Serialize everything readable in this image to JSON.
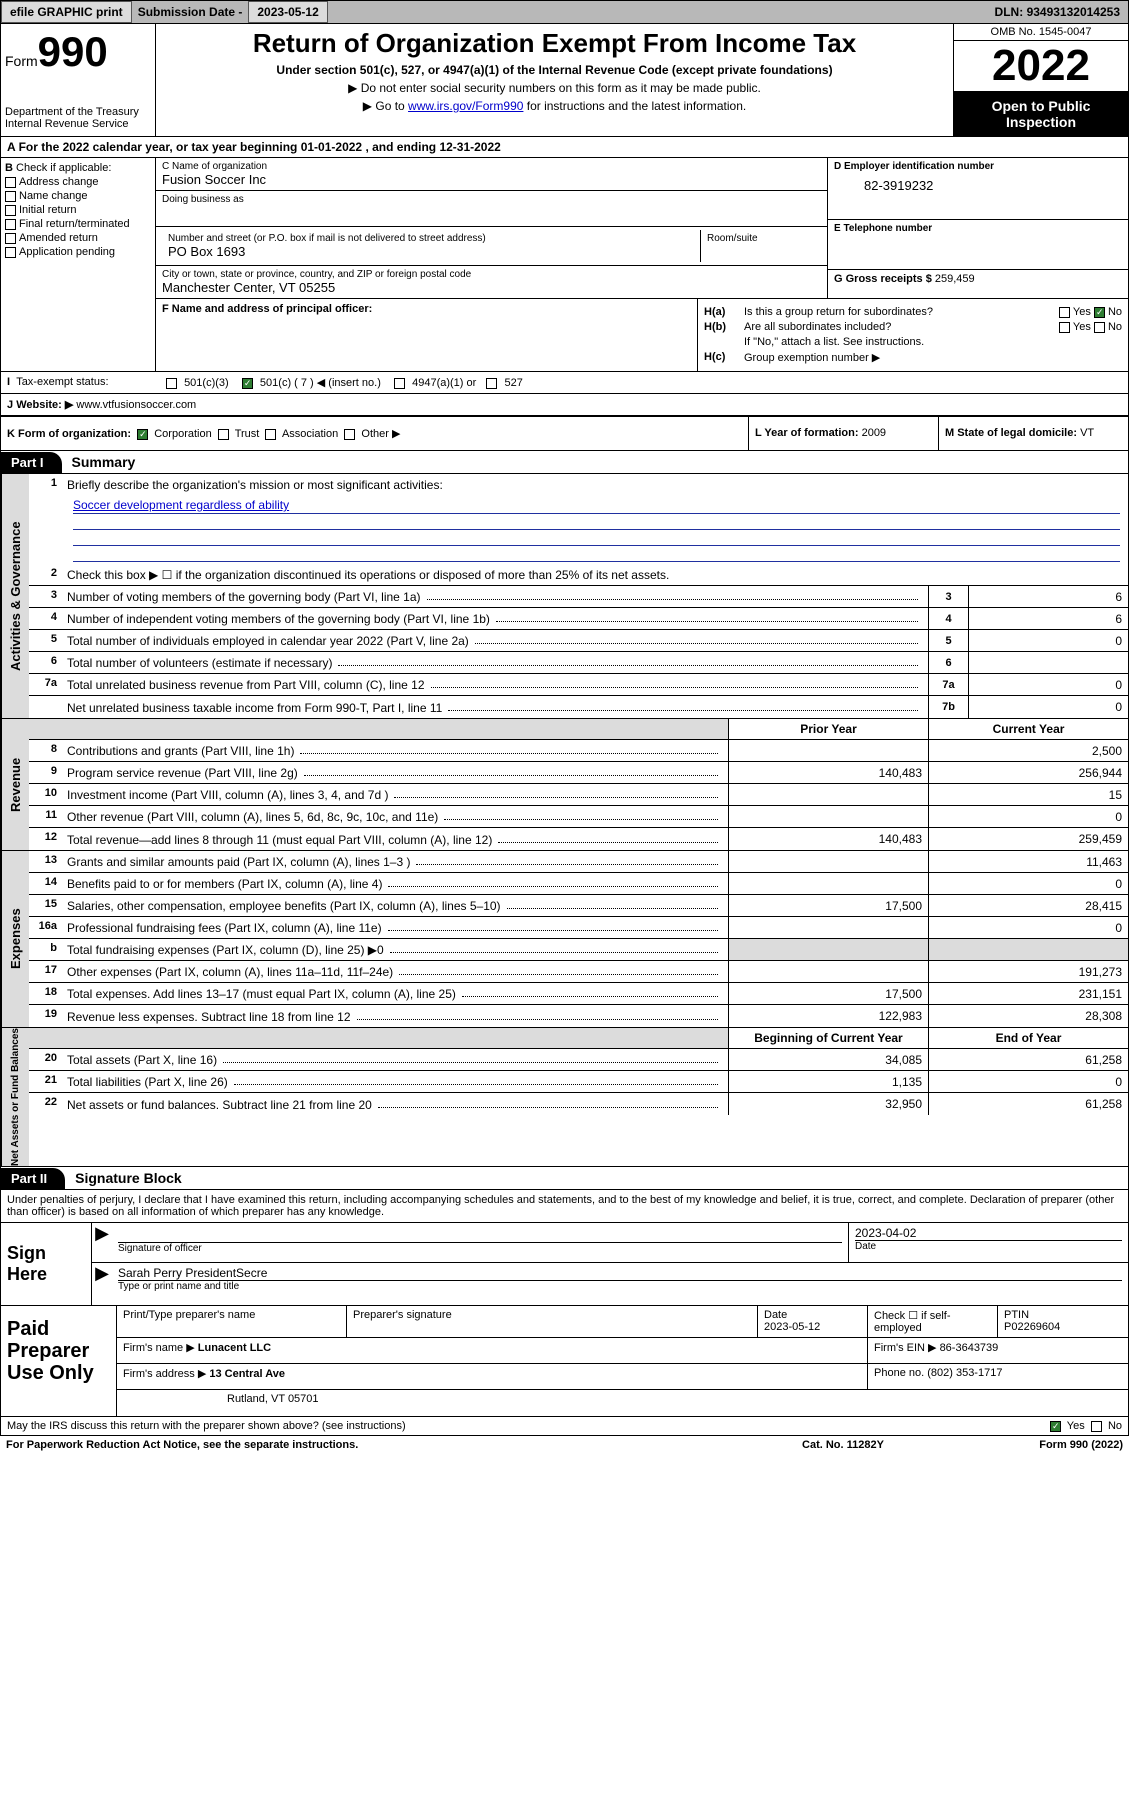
{
  "top": {
    "efile": "efile GRAPHIC print",
    "subdate_label": "Submission Date -",
    "subdate": "2023-05-12",
    "dln_label": "DLN:",
    "dln": "93493132014253"
  },
  "header": {
    "form_word": "Form",
    "form_num": "990",
    "dept": "Department of the Treasury",
    "irs": "Internal Revenue Service",
    "title": "Return of Organization Exempt From Income Tax",
    "subtitle": "Under section 501(c), 527, or 4947(a)(1) of the Internal Revenue Code (except private foundations)",
    "note1": "▶ Do not enter social security numbers on this form as it may be made public.",
    "note2_pre": "▶ Go to ",
    "note2_link": "www.irs.gov/Form990",
    "note2_post": " for instructions and the latest information.",
    "omb": "OMB No. 1545-0047",
    "year": "2022",
    "open": "Open to Public Inspection"
  },
  "period": {
    "text_a": "For the 2022 calendar year, or tax year beginning ",
    "begin": "01-01-2022",
    "text_b": " , and ending ",
    "end": "12-31-2022"
  },
  "b": {
    "label": "Check if applicable:",
    "items": [
      "Address change",
      "Name change",
      "Initial return",
      "Final return/terminated",
      "Amended return",
      "Application pending"
    ]
  },
  "c": {
    "name_label": "C Name of organization",
    "name": "Fusion Soccer Inc",
    "dba_label": "Doing business as",
    "dba": "",
    "addr_label": "Number and street (or P.O. box if mail is not delivered to street address)",
    "room_label": "Room/suite",
    "addr": "PO Box 1693",
    "city_label": "City or town, state or province, country, and ZIP or foreign postal code",
    "city": "Manchester Center, VT  05255"
  },
  "d": {
    "label": "D Employer identification number",
    "val": "82-3919232"
  },
  "e": {
    "label": "E Telephone number",
    "val": ""
  },
  "g": {
    "label": "G Gross receipts $",
    "val": "259,459"
  },
  "f": {
    "label": "F Name and address of principal officer:",
    "val": ""
  },
  "h": {
    "a_label": "H(a)",
    "a_text": "Is this a group return for subordinates?",
    "a_yes": "Yes",
    "a_no": "No",
    "b_label": "H(b)",
    "b_text": "Are all subordinates included?",
    "b_yes": "Yes",
    "b_no": "No",
    "b_note": "If \"No,\" attach a list. See instructions.",
    "c_label": "H(c)",
    "c_text": "Group exemption number ▶"
  },
  "i": {
    "label": "I",
    "text": "Tax-exempt status:",
    "opt1": "501(c)(3)",
    "opt2": "501(c) ( 7 ) ◀ (insert no.)",
    "opt3": "4947(a)(1) or",
    "opt4": "527"
  },
  "j": {
    "label": "J",
    "text": "Website: ▶",
    "val": "www.vtfusionsoccer.com"
  },
  "k": {
    "label": "K Form of organization:",
    "opts": [
      "Corporation",
      "Trust",
      "Association",
      "Other ▶"
    ]
  },
  "l": {
    "label": "L Year of formation:",
    "val": "2009"
  },
  "m": {
    "label": "M State of legal domicile:",
    "val": "VT"
  },
  "part1": {
    "hdr": "Part I",
    "title": "Summary",
    "line1_num": "1",
    "line1": "Briefly describe the organization's mission or most significant activities:",
    "mission": "Soccer development regardless of ability",
    "line2_num": "2",
    "line2": "Check this box ▶ ☐  if the organization discontinued its operations or disposed of more than 25% of its net assets.",
    "rows_gov": [
      {
        "n": "3",
        "t": "Number of voting members of the governing body (Part VI, line 1a)",
        "b": "3",
        "v": "6"
      },
      {
        "n": "4",
        "t": "Number of independent voting members of the governing body (Part VI, line 1b)",
        "b": "4",
        "v": "6"
      },
      {
        "n": "5",
        "t": "Total number of individuals employed in calendar year 2022 (Part V, line 2a)",
        "b": "5",
        "v": "0"
      },
      {
        "n": "6",
        "t": "Total number of volunteers (estimate if necessary)",
        "b": "6",
        "v": ""
      },
      {
        "n": "7a",
        "t": "Total unrelated business revenue from Part VIII, column (C), line 12",
        "b": "7a",
        "v": "0"
      },
      {
        "n": "",
        "t": "Net unrelated business taxable income from Form 990-T, Part I, line 11",
        "b": "7b",
        "v": "0"
      }
    ],
    "col_prior": "Prior Year",
    "col_curr": "Current Year",
    "rows_rev": [
      {
        "n": "8",
        "t": "Contributions and grants (Part VIII, line 1h)",
        "p": "",
        "c": "2,500"
      },
      {
        "n": "9",
        "t": "Program service revenue (Part VIII, line 2g)",
        "p": "140,483",
        "c": "256,944"
      },
      {
        "n": "10",
        "t": "Investment income (Part VIII, column (A), lines 3, 4, and 7d )",
        "p": "",
        "c": "15"
      },
      {
        "n": "11",
        "t": "Other revenue (Part VIII, column (A), lines 5, 6d, 8c, 9c, 10c, and 11e)",
        "p": "",
        "c": "0"
      },
      {
        "n": "12",
        "t": "Total revenue—add lines 8 through 11 (must equal Part VIII, column (A), line 12)",
        "p": "140,483",
        "c": "259,459"
      }
    ],
    "rows_exp": [
      {
        "n": "13",
        "t": "Grants and similar amounts paid (Part IX, column (A), lines 1–3 )",
        "p": "",
        "c": "11,463"
      },
      {
        "n": "14",
        "t": "Benefits paid to or for members (Part IX, column (A), line 4)",
        "p": "",
        "c": "0"
      },
      {
        "n": "15",
        "t": "Salaries, other compensation, employee benefits (Part IX, column (A), lines 5–10)",
        "p": "17,500",
        "c": "28,415"
      },
      {
        "n": "16a",
        "t": "Professional fundraising fees (Part IX, column (A), line 11e)",
        "p": "",
        "c": "0"
      },
      {
        "n": "b",
        "t": "Total fundraising expenses (Part IX, column (D), line 25) ▶0",
        "p": "shade",
        "c": "shade"
      },
      {
        "n": "17",
        "t": "Other expenses (Part IX, column (A), lines 11a–11d, 11f–24e)",
        "p": "",
        "c": "191,273"
      },
      {
        "n": "18",
        "t": "Total expenses. Add lines 13–17 (must equal Part IX, column (A), line 25)",
        "p": "17,500",
        "c": "231,151"
      },
      {
        "n": "19",
        "t": "Revenue less expenses. Subtract line 18 from line 12",
        "p": "122,983",
        "c": "28,308"
      }
    ],
    "col_begin": "Beginning of Current Year",
    "col_end": "End of Year",
    "rows_net": [
      {
        "n": "20",
        "t": "Total assets (Part X, line 16)",
        "p": "34,085",
        "c": "61,258"
      },
      {
        "n": "21",
        "t": "Total liabilities (Part X, line 26)",
        "p": "1,135",
        "c": "0"
      },
      {
        "n": "22",
        "t": "Net assets or fund balances. Subtract line 21 from line 20",
        "p": "32,950",
        "c": "61,258"
      }
    ],
    "side_gov": "Activities & Governance",
    "side_rev": "Revenue",
    "side_exp": "Expenses",
    "side_net": "Net Assets or Fund Balances"
  },
  "part2": {
    "hdr": "Part II",
    "title": "Signature Block",
    "decl": "Under penalties of perjury, I declare that I have examined this return, including accompanying schedules and statements, and to the best of my knowledge and belief, it is true, correct, and complete. Declaration of preparer (other than officer) is based on all information of which preparer has any knowledge."
  },
  "sign": {
    "label": "Sign Here",
    "sig_label": "Signature of officer",
    "date_label": "Date",
    "date": "2023-04-02",
    "name": "Sarah Perry  PresidentSecre",
    "name_label": "Type or print name and title"
  },
  "prep": {
    "label": "Paid Preparer Use Only",
    "h1": "Print/Type preparer's name",
    "h2": "Preparer's signature",
    "h3": "Date",
    "h4": "Check ☐ if self-employed",
    "h5": "PTIN",
    "date": "2023-05-12",
    "ptin": "P02269604",
    "firmname_label": "Firm's name    ▶",
    "firmname": "Lunacent LLC",
    "ein_label": "Firm's EIN ▶",
    "ein": "86-3643739",
    "firmaddr_label": "Firm's address ▶",
    "firmaddr": "13 Central Ave",
    "firmaddr2": "Rutland, VT  05701",
    "phone_label": "Phone no.",
    "phone": "(802) 353-1717"
  },
  "footer": {
    "discuss": "May the IRS discuss this return with the preparer shown above? (see instructions)",
    "yes": "Yes",
    "no": "No",
    "pra": "For Paperwork Reduction Act Notice, see the separate instructions.",
    "catno": "Cat. No. 11282Y",
    "formref": "Form 990 (2022)"
  }
}
